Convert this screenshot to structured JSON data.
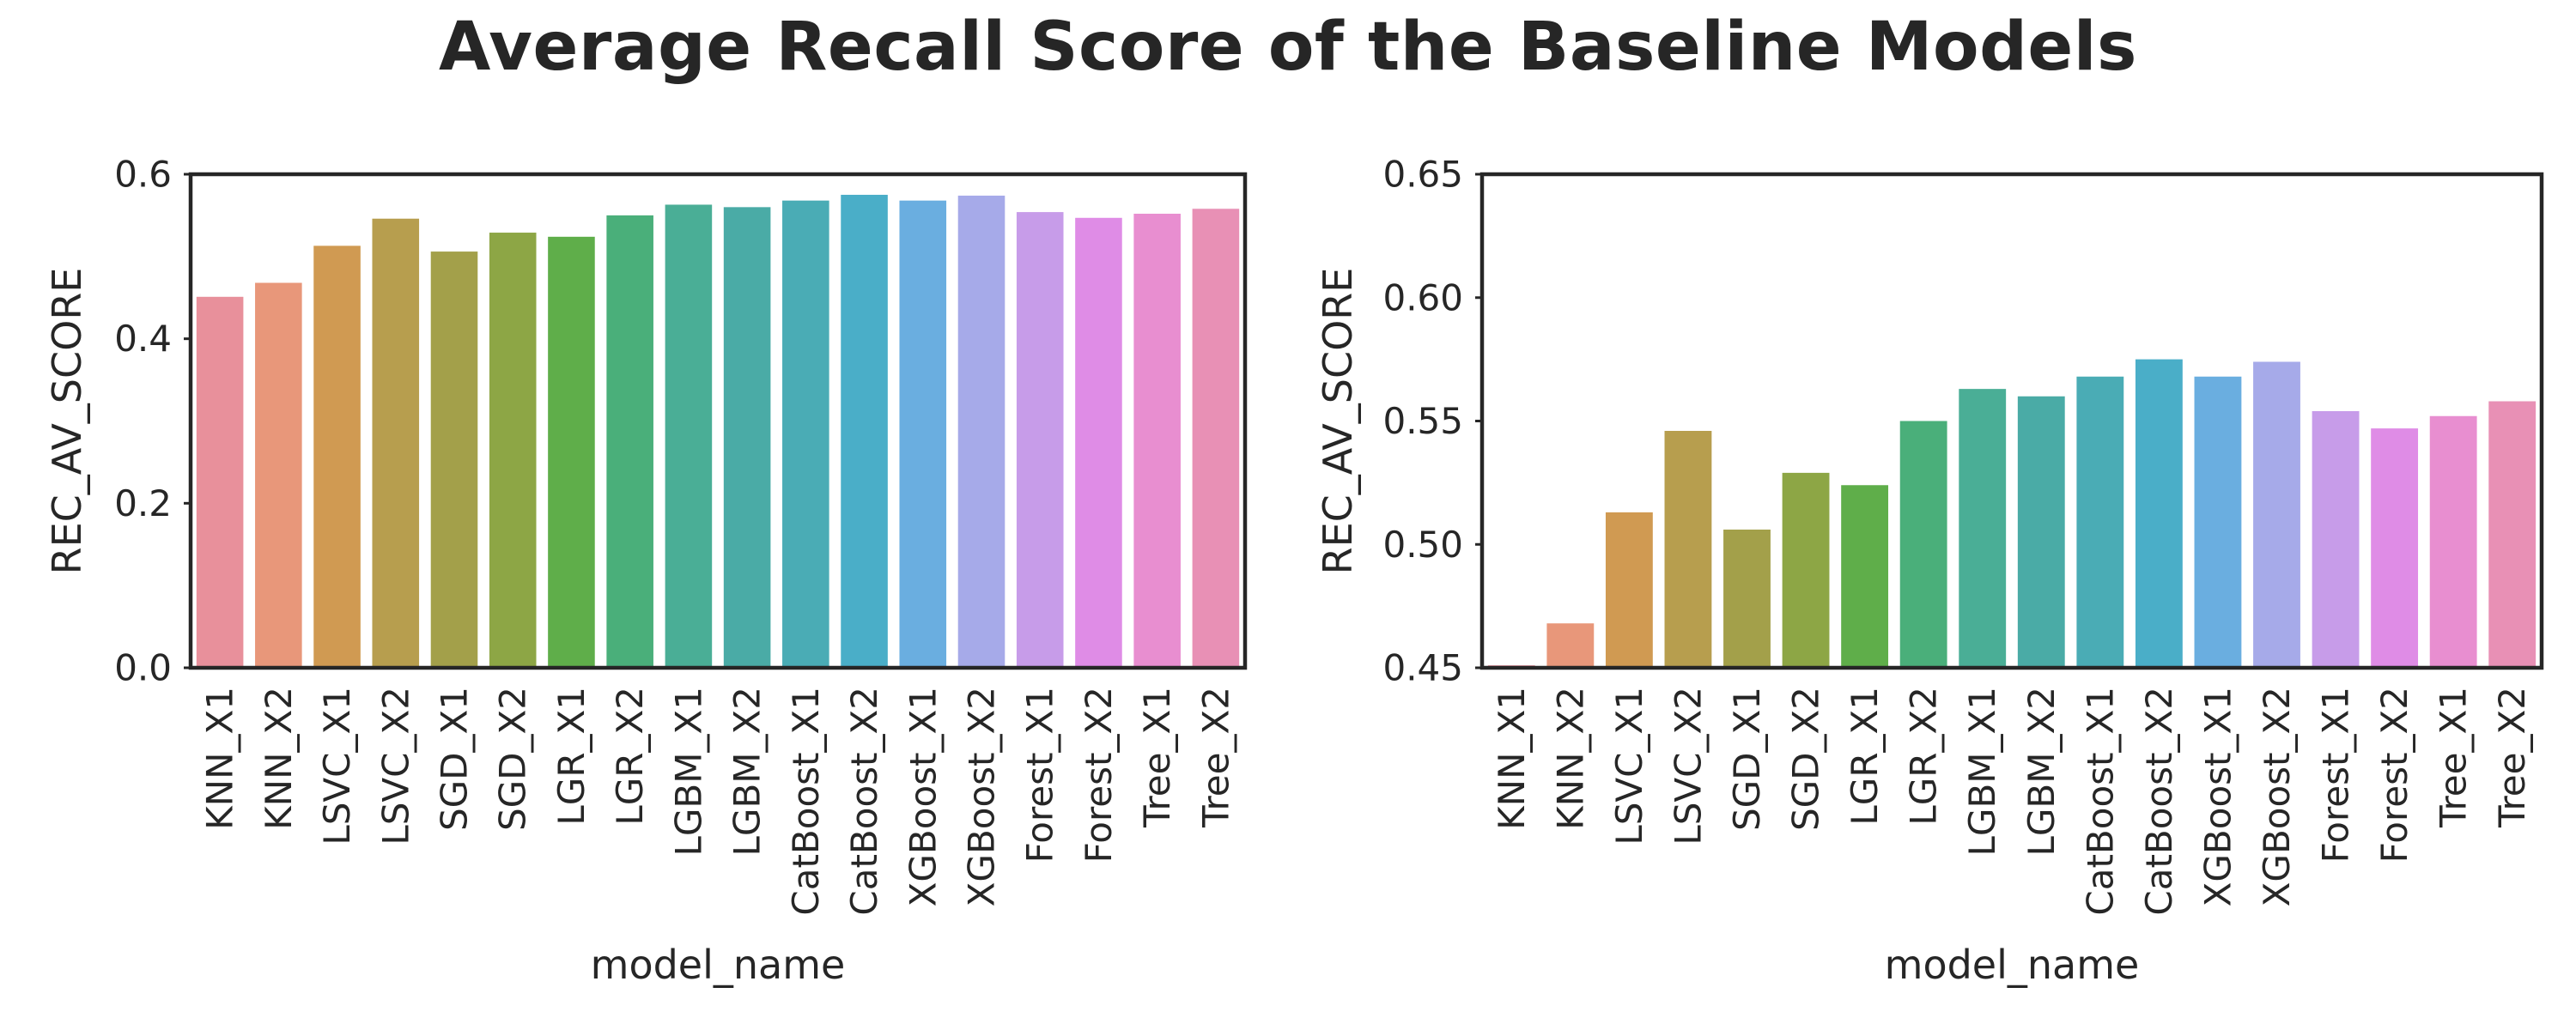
{
  "title": "Average Recall Score of the Baseline Models",
  "chart_data": [
    {
      "type": "bar",
      "xlabel": "model_name",
      "ylabel": "REC_AV_SCORE",
      "ylim": [
        0,
        0.6
      ],
      "yticks": [
        0.0,
        0.2,
        0.4,
        0.6
      ],
      "ytick_labels": [
        "0.0",
        "0.2",
        "0.4",
        "0.6"
      ],
      "grid": false,
      "categories": [
        "KNN_X1",
        "KNN_X2",
        "LSVC_X1",
        "LSVC_X2",
        "SGD_X1",
        "SGD_X2",
        "LGR_X1",
        "LGR_X2",
        "LGBM_X1",
        "LGBM_X2",
        "CatBoost_X1",
        "CatBoost_X2",
        "XGBoost_X1",
        "XGBoost_X2",
        "Forest_X1",
        "Forest_X2",
        "Tree_X1",
        "Tree_X2"
      ],
      "values": [
        0.451,
        0.468,
        0.513,
        0.546,
        0.506,
        0.529,
        0.524,
        0.55,
        0.563,
        0.56,
        0.568,
        0.575,
        0.568,
        0.574,
        0.554,
        0.547,
        0.552,
        0.558
      ],
      "colors": [
        "#e8909b",
        "#e8977a",
        "#d09a52",
        "#b79e4e",
        "#a3a04a",
        "#8da645",
        "#5fae4a",
        "#4aaf7a",
        "#4aae96",
        "#4aaba6",
        "#4aacb5",
        "#4aaec8",
        "#6aaee0",
        "#a6aae9",
        "#c79ce9",
        "#df8ce6",
        "#e88ed0",
        "#e890b5"
      ]
    },
    {
      "type": "bar",
      "xlabel": "model_name",
      "ylabel": "REC_AV_SCORE",
      "ylim": [
        0.45,
        0.65
      ],
      "yticks": [
        0.45,
        0.5,
        0.55,
        0.6,
        0.65
      ],
      "ytick_labels": [
        "0.45",
        "0.50",
        "0.55",
        "0.60",
        "0.65"
      ],
      "grid": false,
      "categories": [
        "KNN_X1",
        "KNN_X2",
        "LSVC_X1",
        "LSVC_X2",
        "SGD_X1",
        "SGD_X2",
        "LGR_X1",
        "LGR_X2",
        "LGBM_X1",
        "LGBM_X2",
        "CatBoost_X1",
        "CatBoost_X2",
        "XGBoost_X1",
        "XGBoost_X2",
        "Forest_X1",
        "Forest_X2",
        "Tree_X1",
        "Tree_X2"
      ],
      "values": [
        0.451,
        0.468,
        0.513,
        0.546,
        0.506,
        0.529,
        0.524,
        0.55,
        0.563,
        0.56,
        0.568,
        0.575,
        0.568,
        0.574,
        0.554,
        0.547,
        0.552,
        0.558
      ],
      "colors": [
        "#e8909b",
        "#e8977a",
        "#d09a52",
        "#b79e4e",
        "#a3a04a",
        "#8da645",
        "#5fae4a",
        "#4aaf7a",
        "#4aae96",
        "#4aaba6",
        "#4aacb5",
        "#4aaec8",
        "#6aaee0",
        "#a6aae9",
        "#c79ce9",
        "#df8ce6",
        "#e88ed0",
        "#e890b5"
      ]
    }
  ]
}
